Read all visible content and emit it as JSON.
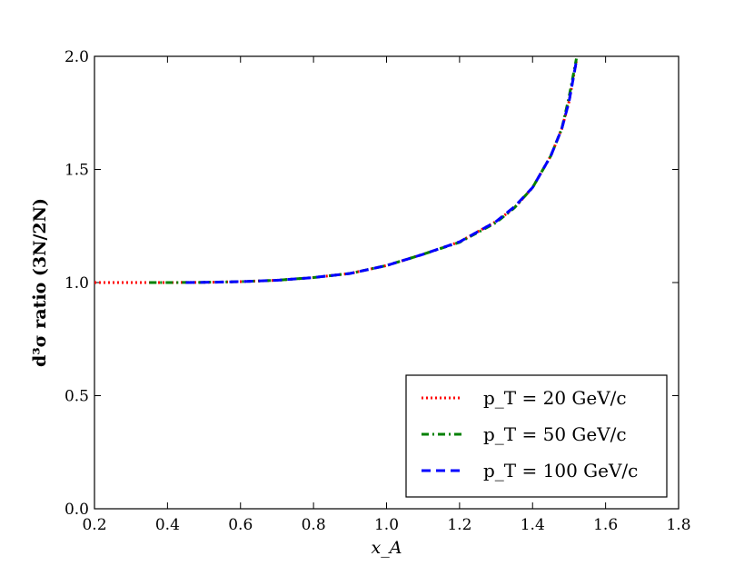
{
  "chart_data": {
    "type": "line",
    "xlabel": "x_A",
    "ylabel": "d³σ ratio (3N/2N)",
    "xlim": [
      0.2,
      1.8
    ],
    "ylim": [
      0.0,
      2.0
    ],
    "xticks": [
      "0.2",
      "0.4",
      "0.6",
      "0.8",
      "1.0",
      "1.2",
      "1.4",
      "1.6",
      "1.8"
    ],
    "yticks": [
      "0.0",
      "0.5",
      "1.0",
      "1.5",
      "2.0"
    ],
    "grid": false,
    "legend_position": "bottom-right",
    "series": [
      {
        "name": "p_T = 20 GeV/c",
        "color": "#ff0000",
        "style": "dotted",
        "x": [
          0.2,
          0.3,
          0.4,
          0.5,
          0.6,
          0.7,
          0.8,
          0.9,
          1.0,
          1.1,
          1.2,
          1.3,
          1.35,
          1.4,
          1.45,
          1.48,
          1.5,
          1.52
        ],
        "y": [
          1.0,
          1.0,
          1.0,
          1.001,
          1.004,
          1.01,
          1.022,
          1.04,
          1.075,
          1.125,
          1.18,
          1.27,
          1.33,
          1.42,
          1.56,
          1.68,
          1.8,
          1.98
        ]
      },
      {
        "name": "p_T = 50 GeV/c",
        "color": "#008000",
        "style": "dashdot",
        "x": [
          0.35,
          0.4,
          0.5,
          0.6,
          0.7,
          0.8,
          0.9,
          1.0,
          1.1,
          1.2,
          1.3,
          1.35,
          1.4,
          1.45,
          1.48,
          1.5,
          1.52
        ],
        "y": [
          1.0,
          1.0,
          1.001,
          1.004,
          1.01,
          1.022,
          1.04,
          1.075,
          1.125,
          1.178,
          1.265,
          1.33,
          1.42,
          1.56,
          1.68,
          1.82,
          1.99
        ]
      },
      {
        "name": "p_T = 100 GeV/c",
        "color": "#0000ff",
        "style": "dashed",
        "x": [
          0.45,
          0.5,
          0.6,
          0.7,
          0.8,
          0.9,
          1.0,
          1.1,
          1.2,
          1.3,
          1.35,
          1.4,
          1.45,
          1.48,
          1.5,
          1.52
        ],
        "y": [
          1.0,
          1.001,
          1.004,
          1.01,
          1.022,
          1.04,
          1.075,
          1.125,
          1.18,
          1.27,
          1.335,
          1.42,
          1.56,
          1.68,
          1.8,
          1.98
        ]
      }
    ]
  }
}
